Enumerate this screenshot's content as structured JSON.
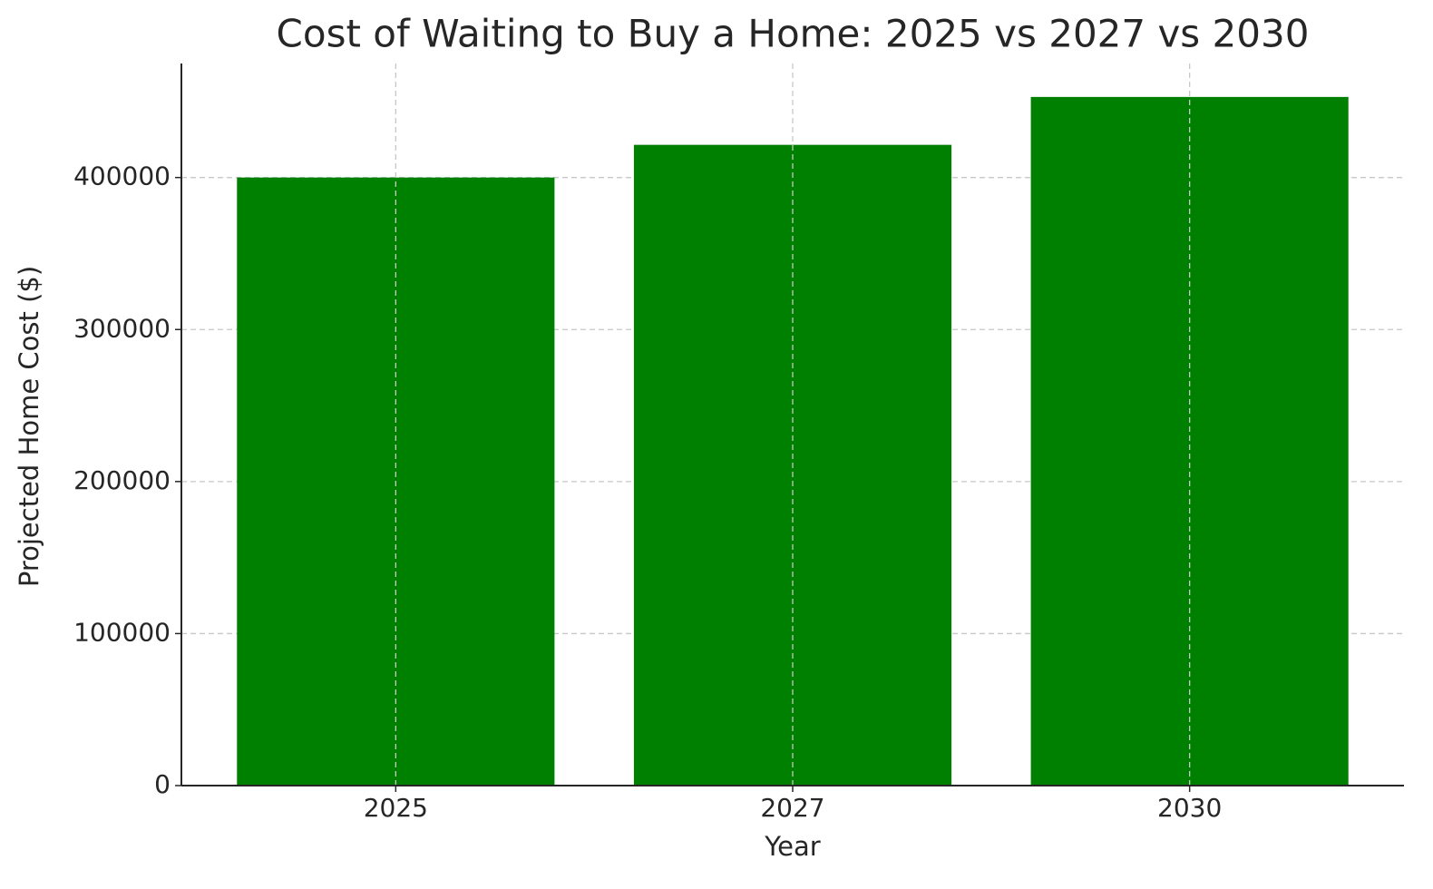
{
  "chart_data": {
    "type": "bar",
    "title": "Cost of Waiting to Buy a Home: 2025 vs 2027 vs 2030",
    "x_label": "Year",
    "y_label": "Projected Home Cost ($)",
    "categories": [
      "2025",
      "2027",
      "2030"
    ],
    "values": [
      400000,
      421500,
      453000
    ],
    "color": "#008000",
    "ylim": [
      0,
      475000
    ],
    "yticks": [
      0,
      100000,
      200000,
      300000,
      400000
    ],
    "grid": true
  }
}
